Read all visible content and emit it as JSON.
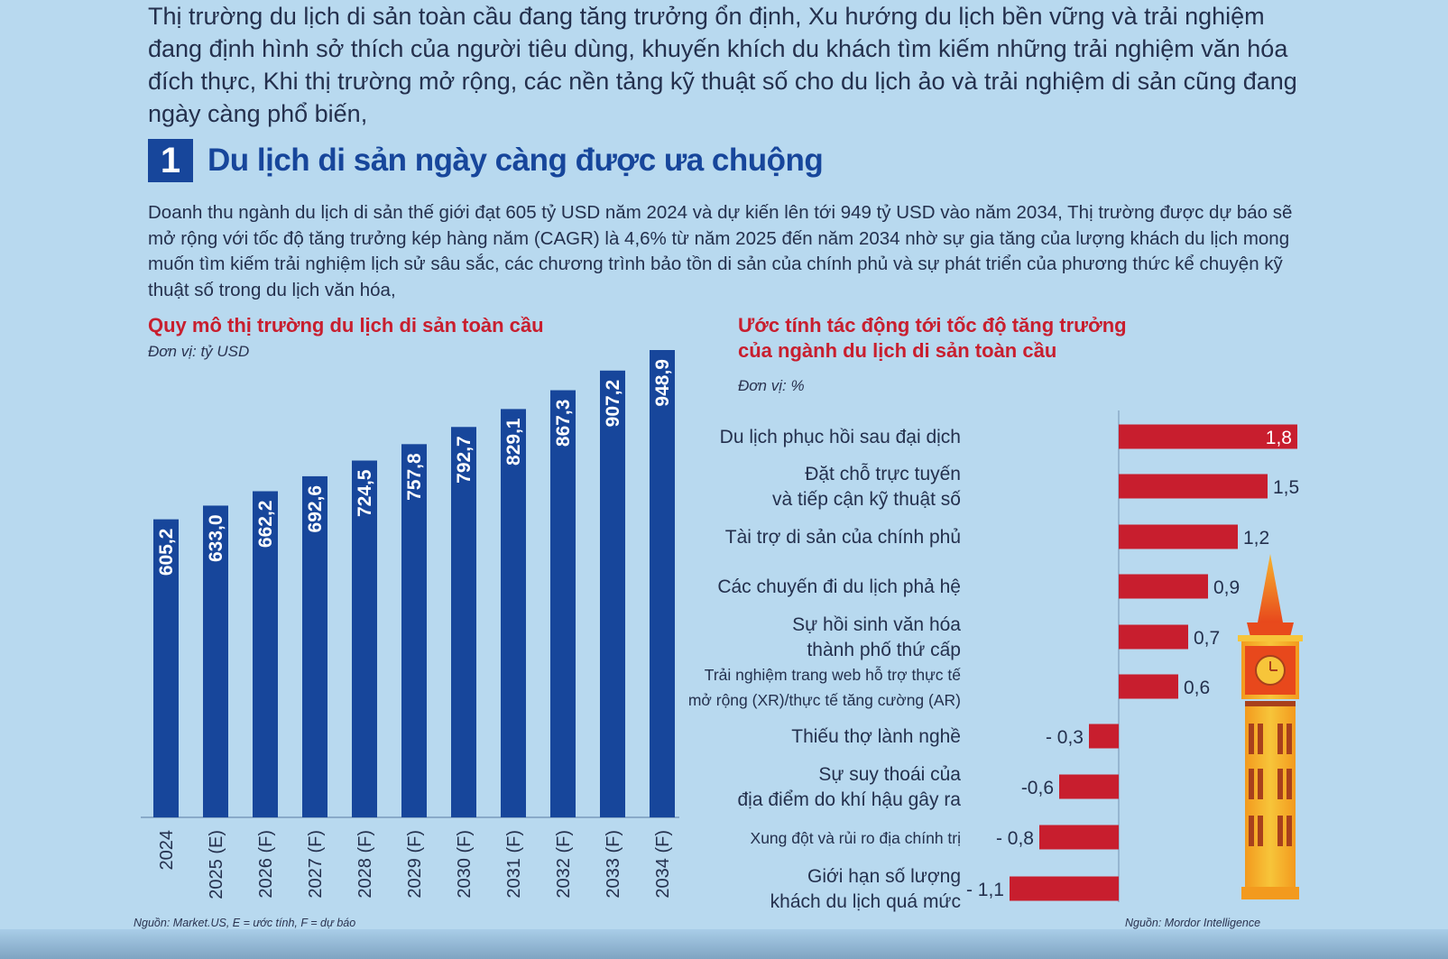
{
  "intro": "Thị trường du lịch di sản toàn cầu đang tăng trưởng ổn định, Xu hướng du lịch bền vững và trải nghiệm đang định hình sở thích của người tiêu dùng, khuyến khích du khách tìm kiếm những trải nghiệm văn hóa đích thực, Khi thị trường mở rộng, các nền tảng kỹ thuật số cho du lịch ảo và trải nghiệm di sản cũng đang ngày càng phổ biến,",
  "section": {
    "number": "1",
    "title": "Du lịch di sản ngày càng được ưa chuộng",
    "body": "Doanh thu ngành du lịch di sản thế giới đạt 605 tỷ USD năm 2024 và dự kiến lên tới 949 tỷ USD vào năm 2034, Thị trường được dự báo sẽ mở rộng với tốc độ tăng trưởng kép hàng năm (CAGR) là 4,6% từ năm 2025 đến năm 2034 nhờ sự gia tăng của lượng khách du lịch mong muốn tìm kiếm trải nghiệm lịch sử sâu sắc, các chương trình bảo tồn di sản của chính phủ và sự phát triển của phương thức kể chuyện kỹ thuật số trong du lịch văn hóa,"
  },
  "colors": {
    "background": "#b8d9ef",
    "bar_blue": "#17469b",
    "bar_red": "#c81e2e",
    "title_red": "#c81e2e",
    "tower_orange": "#f39a1e",
    "tower_yellow": "#f7c53a"
  },
  "chart_data": [
    {
      "type": "bar",
      "title": "Quy mô thị trường du lịch di sản toàn cầu",
      "unit": "Đơn vị: tỷ USD",
      "categories": [
        "2024",
        "2025 (E)",
        "2026 (F)",
        "2027 (F)",
        "2028 (F)",
        "2029 (F)",
        "2030 (F)",
        "2031 (F)",
        "2032 (F)",
        "2033 (F)",
        "2034 (F)"
      ],
      "values": [
        605.2,
        633.0,
        662.2,
        692.6,
        724.5,
        757.8,
        792.7,
        829.1,
        867.3,
        907.2,
        948.9
      ],
      "value_labels": [
        "605,2",
        "633,0",
        "662,2",
        "692,6",
        "724,5",
        "757,8",
        "792,7",
        "829,1",
        "867,3",
        "907,2",
        "948,9"
      ],
      "source": "Nguồn: Market.US, E = ước tính, F = dự báo"
    },
    {
      "type": "bar",
      "orientation": "horizontal",
      "title_lines": [
        "Ước tính tác động tới tốc độ tăng trưởng",
        "của ngành du lịch di sản toàn cầu"
      ],
      "unit": "Đơn vị: %",
      "categories": [
        [
          "Du lịch phục hồi sau đại dịch"
        ],
        [
          "Đặt chỗ trực tuyến",
          "và tiếp cận kỹ thuật số"
        ],
        [
          "Tài trợ di sản của chính phủ"
        ],
        [
          "Các chuyến đi du lịch phả hệ"
        ],
        [
          "Sự hồi sinh văn hóa",
          "thành phố thứ cấp"
        ],
        [
          "Trải nghiệm trang web hỗ trợ thực tế",
          "mở rộng (XR)/thực tế tăng cường (AR)"
        ],
        [
          "Thiếu thợ lành nghề"
        ],
        [
          "Sự suy thoái của",
          "địa điểm do khí hậu gây ra"
        ],
        [
          "Xung đột và rủi ro địa chính trị"
        ],
        [
          "Giới hạn số lượng",
          "khách du lịch quá mức"
        ]
      ],
      "values": [
        1.8,
        1.5,
        1.2,
        0.9,
        0.7,
        0.6,
        -0.3,
        -0.6,
        -0.8,
        -1.1
      ],
      "value_labels": [
        "1,8",
        "1,5",
        "1,2",
        "0,9",
        "0,7",
        "0,6",
        "- 0,3",
        "-0,6",
        "- 0,8",
        "- 1,1"
      ],
      "source": "Nguồn: Mordor Intelligence"
    }
  ],
  "icons": [
    "clock-tower-icon"
  ]
}
